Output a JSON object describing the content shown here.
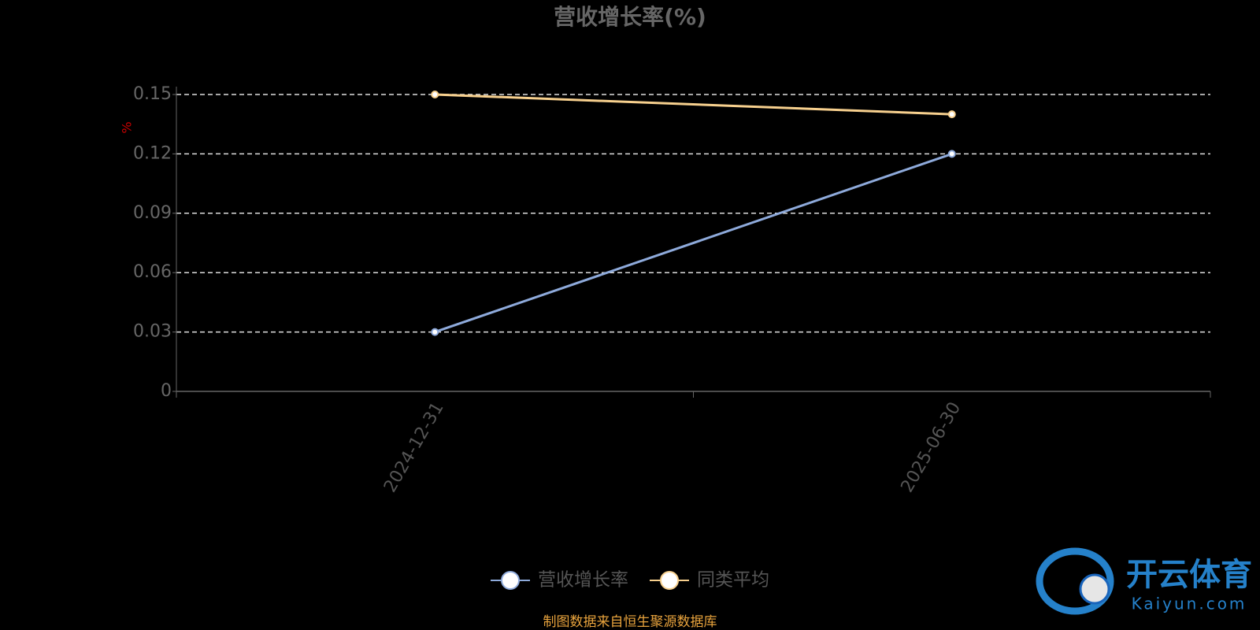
{
  "chart_data": {
    "type": "line",
    "title": "营收增长率(%)",
    "y_label": "%",
    "categories": [
      "2024-12-31",
      "2025-06-30"
    ],
    "series": [
      {
        "name": "营收增长率",
        "color": "#8eaadb",
        "values": [
          0.03,
          0.12
        ]
      },
      {
        "name": "同类平均",
        "color": "#f7d08e",
        "values": [
          0.15,
          0.14
        ]
      }
    ],
    "ylim": [
      0,
      0.15
    ],
    "yticks": [
      0,
      0.03,
      0.06,
      0.09,
      0.12,
      0.15
    ],
    "grid": true,
    "legend": "bottom",
    "source": "制图数据来自恒生聚源数据库"
  },
  "watermark": {
    "name": "开云体育",
    "url": "Kaiyun.com"
  }
}
